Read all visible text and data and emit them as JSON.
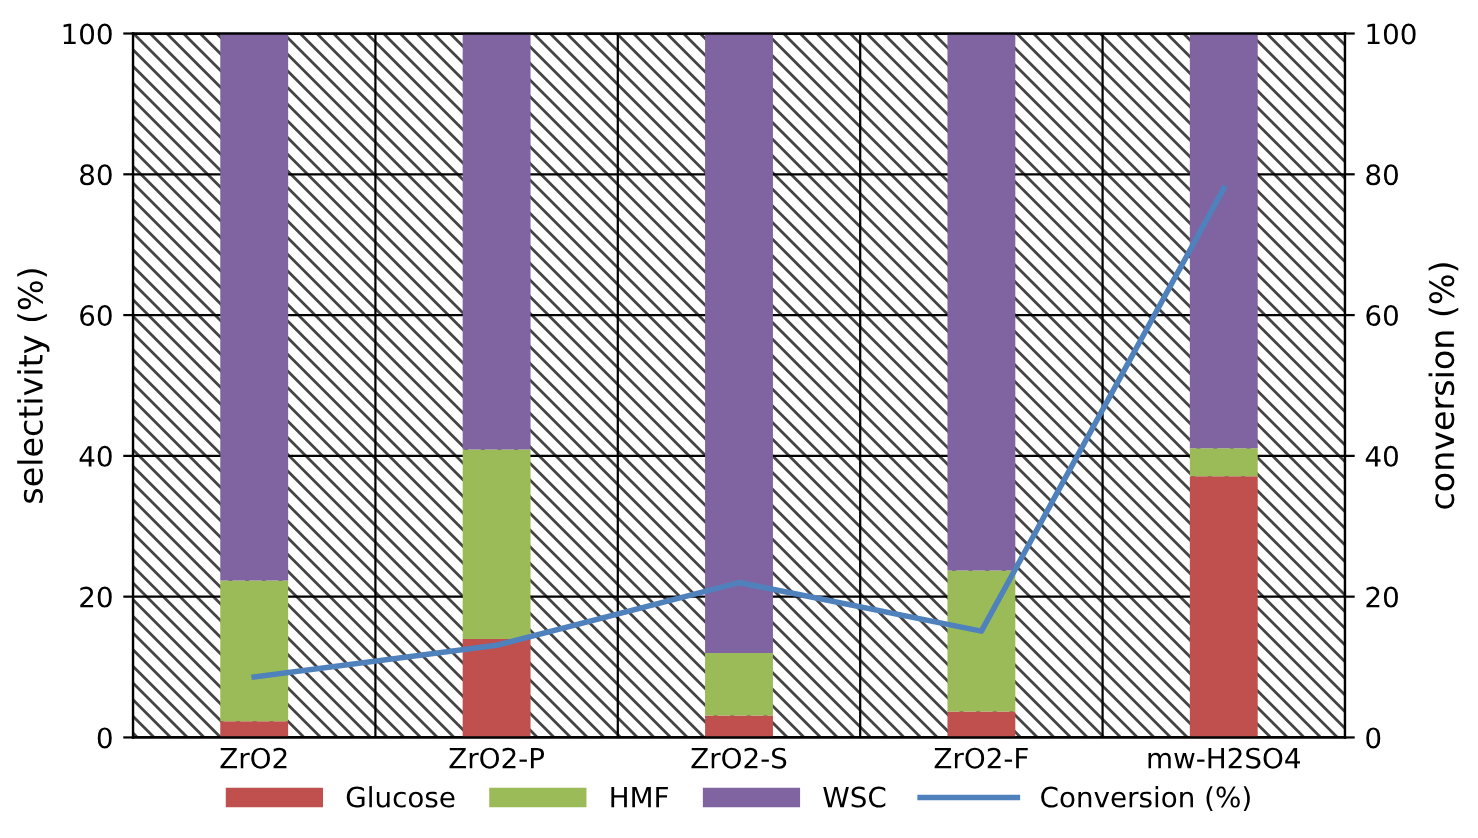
{
  "chart_data": {
    "type": "bar",
    "stacked": true,
    "categories": [
      "ZrO2",
      "ZrO2-P",
      "ZrO2-S",
      "ZrO2-F",
      "mw-H2SO4"
    ],
    "series": [
      {
        "name": "Glucose",
        "color": "#c0504d",
        "values": [
          2.3,
          14,
          3.1,
          3.7,
          37.1
        ]
      },
      {
        "name": "HMF",
        "color": "#9bbb59",
        "values": [
          20,
          26.9,
          8.9,
          20,
          4
        ]
      },
      {
        "name": "WSC",
        "color": "#8064a2",
        "values": [
          77.7,
          59.1,
          88,
          76.3,
          58.9
        ]
      },
      {
        "name": "Conversion (%)",
        "type": "line",
        "axis": "y2",
        "color": "#4f81bd",
        "values": [
          8.6,
          13.1,
          22,
          15.1,
          78
        ]
      }
    ],
    "ylabel": "selectivity (%)",
    "y2label": "conversion (%)",
    "ylim": [
      0,
      100
    ],
    "yticks": [
      0,
      20,
      40,
      60,
      80,
      100
    ],
    "y2lim": [
      0,
      100
    ],
    "y2ticks": [
      0,
      20,
      40,
      60,
      80,
      100
    ],
    "grid": true,
    "legend": "bottom",
    "marker": "none",
    "line_style": "solid"
  }
}
